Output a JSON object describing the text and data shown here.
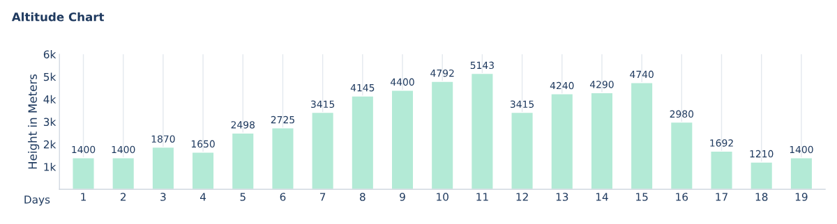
{
  "chart_data": {
    "type": "bar",
    "title": "Altitude Chart",
    "xlabel": "Days",
    "ylabel": "Height in Meters",
    "categories": [
      "1",
      "2",
      "3",
      "4",
      "5",
      "6",
      "7",
      "8",
      "9",
      "10",
      "11",
      "12",
      "13",
      "14",
      "15",
      "16",
      "17",
      "18",
      "19"
    ],
    "values": [
      1400,
      1400,
      1870,
      1650,
      2498,
      2725,
      3415,
      4145,
      4400,
      4792,
      5143,
      3415,
      4240,
      4290,
      4740,
      2980,
      1692,
      1210,
      1400
    ],
    "color": "#b3ead6",
    "data_labels": true,
    "grid": "x",
    "legend": false,
    "ylim": [
      0,
      6000
    ],
    "yticks": [
      {
        "value": 1000,
        "label": "1k"
      },
      {
        "value": 2000,
        "label": "2k"
      },
      {
        "value": 3000,
        "label": "3k"
      },
      {
        "value": 4000,
        "label": "4k"
      },
      {
        "value": 5000,
        "label": "5k"
      },
      {
        "value": 6000,
        "label": "6k"
      }
    ]
  }
}
